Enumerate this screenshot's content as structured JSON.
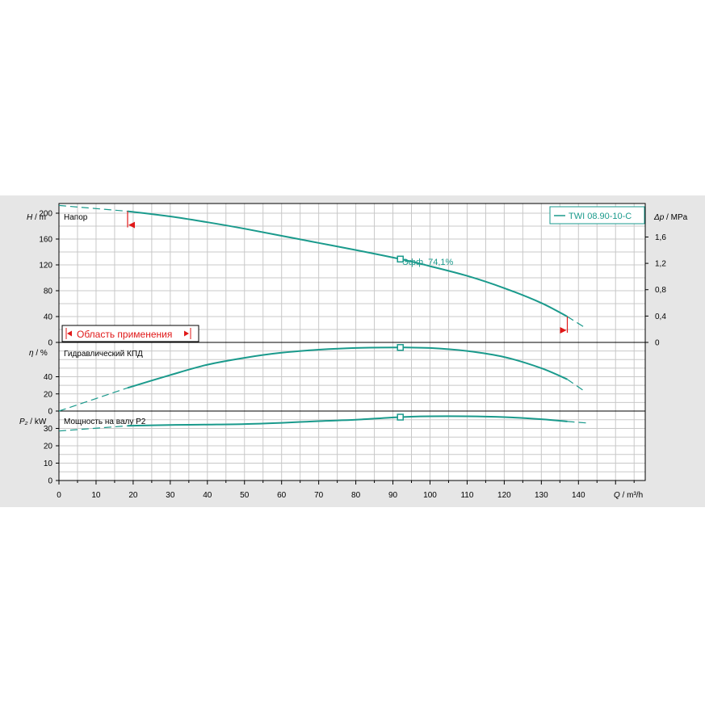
{
  "legend": {
    "series_name": "TWI 08.90-10-C"
  },
  "application_range_label": "Область применения",
  "efficiency_label": "Эфф.  74,1%",
  "colors": {
    "curve": "#1a9a8c",
    "marker_red": "#e01818",
    "grid": "#c8c8c8",
    "background": "#e6e6e6",
    "plot": "#ffffff"
  },
  "chart_data": {
    "type": "line",
    "x_axis": {
      "label_symbol": "Q",
      "label_unit": "m³/h",
      "range": [
        0,
        158
      ],
      "ticks": [
        0,
        10,
        20,
        30,
        40,
        50,
        60,
        70,
        80,
        90,
        100,
        110,
        120,
        130,
        140
      ]
    },
    "head_panel": {
      "title": "Напор",
      "y_symbol": "H",
      "y_unit": "m",
      "range": [
        0,
        215
      ],
      "ticks": [
        0,
        40,
        80,
        120,
        160,
        200
      ],
      "right_axis": {
        "symbol": "Δp",
        "unit": "MPa",
        "ticks": [
          "0",
          "0,4",
          "0,8",
          "1,2",
          "1,6"
        ],
        "tick_values": [
          0,
          0.4,
          0.8,
          1.2,
          1.6
        ]
      },
      "series": [
        {
          "name": "TWI 08.90-10-C",
          "x": [
            18.5,
            30,
            40,
            50,
            60,
            70,
            80,
            92,
            100,
            110,
            120,
            130,
            137
          ],
          "y": [
            203,
            195,
            186,
            176,
            165,
            154,
            143,
            129,
            118,
            103,
            84,
            61,
            40
          ]
        }
      ],
      "extension_left": {
        "x": [
          0,
          18.5
        ],
        "y": [
          212,
          203
        ]
      },
      "extension_right": {
        "x": [
          137,
          142
        ],
        "y": [
          40,
          22
        ]
      },
      "duty_point": {
        "x": 92,
        "y": 129
      },
      "application_range": {
        "q_min": 18.5,
        "q_max": 137
      }
    },
    "efficiency_panel": {
      "title": "Гидравлический КПД",
      "y_symbol": "η",
      "y_unit": "%",
      "range": [
        0,
        80
      ],
      "ticks": [
        0,
        20,
        40
      ],
      "series": [
        {
          "name": "η",
          "x": [
            18.5,
            30,
            40,
            50,
            60,
            70,
            80,
            92,
            100,
            110,
            120,
            130,
            137
          ],
          "y": [
            27,
            42,
            54,
            62,
            68,
            71.5,
            73.5,
            74.1,
            73.5,
            70,
            63,
            50,
            37
          ]
        }
      ],
      "extension_left": {
        "x": [
          0,
          18.5
        ],
        "y": [
          0,
          27
        ]
      },
      "extension_right": {
        "x": [
          137,
          142
        ],
        "y": [
          37,
          22
        ]
      },
      "duty_point": {
        "x": 92,
        "y": 74.1
      }
    },
    "power_panel": {
      "title": "Мощность  на валу P2",
      "y_symbol": "P₂",
      "y_unit": "kW",
      "range": [
        0,
        40
      ],
      "ticks": [
        0,
        10,
        20,
        30
      ],
      "series": [
        {
          "name": "P2",
          "x": [
            18.5,
            30,
            40,
            50,
            60,
            70,
            80,
            92,
            100,
            110,
            120,
            130,
            137
          ],
          "y": [
            31.5,
            32.0,
            32.2,
            32.5,
            33.2,
            34.2,
            35.0,
            36.5,
            37.0,
            37.0,
            36.5,
            35.3,
            34.0
          ]
        }
      ],
      "extension_left": {
        "x": [
          0,
          18.5
        ],
        "y": [
          28.5,
          31.5
        ]
      },
      "extension_right": {
        "x": [
          137,
          143
        ],
        "y": [
          34.0,
          33.0
        ]
      },
      "duty_point": {
        "x": 92,
        "y": 36.5
      }
    }
  }
}
